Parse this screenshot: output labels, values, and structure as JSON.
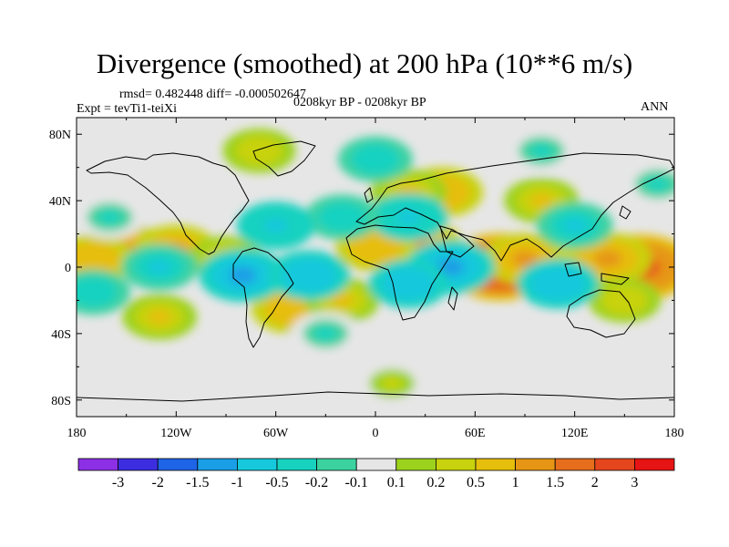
{
  "title": "Divergence (smoothed) at 200 hPa (10**6 m/s)",
  "stats": "rmsd= 0.482448 diff= -0.000502647",
  "experiment": "Expt = tevTi1-teiXi",
  "period": "0208kyr BP - 0208kyr BP",
  "season": "ANN",
  "colors": {
    "land": "#e6e6e6",
    "palette": [
      "#8c30e6",
      "#3c2ee0",
      "#1e64e6",
      "#1a9ee6",
      "#16c8dc",
      "#18d2c0",
      "#3cd2a0",
      "#e6e6e6",
      "#9cd21e",
      "#c8d20e",
      "#e6be0c",
      "#e69614",
      "#e66e1c",
      "#e6461e",
      "#e61414"
    ]
  },
  "chart_data": {
    "type": "heatmap",
    "projection": "cylindrical-equidistant",
    "xlim": [
      -180,
      180
    ],
    "ylim": [
      -90,
      90
    ],
    "x_ticks": [
      -180,
      -120,
      -60,
      0,
      60,
      120,
      180
    ],
    "x_tick_labels": [
      "180",
      "120W",
      "60W",
      "0",
      "60E",
      "120E",
      "180"
    ],
    "y_ticks": [
      80,
      40,
      0,
      -40,
      -80
    ],
    "y_tick_labels": [
      "80N",
      "40N",
      "0",
      "40S",
      "80S"
    ],
    "colorbar_levels": [
      -3,
      -2,
      -1.5,
      -1,
      -0.5,
      -0.2,
      -0.1,
      0.1,
      0.2,
      0.5,
      1,
      1.5,
      2,
      3
    ],
    "colorbar_labels": [
      "-3",
      "-2",
      "-1.5",
      "-1",
      "-0.5",
      "-0.2",
      "-0.1",
      "0.1",
      "0.2",
      "0.5",
      "1",
      "1.5",
      "2",
      "3"
    ],
    "field_centers": [
      {
        "lon": -150,
        "lat": 10,
        "value": 1.2
      },
      {
        "lon": -120,
        "lat": 10,
        "value": 1.0
      },
      {
        "lon": -170,
        "lat": 5,
        "value": 0.8
      },
      {
        "lon": -90,
        "lat": 5,
        "value": 0.5
      },
      {
        "lon": 25,
        "lat": 13,
        "value": 1.4
      },
      {
        "lon": 0,
        "lat": 12,
        "value": 0.8
      },
      {
        "lon": 75,
        "lat": 0,
        "value": 2.5
      },
      {
        "lon": 90,
        "lat": 5,
        "value": 1.0
      },
      {
        "lon": 160,
        "lat": 0,
        "value": 2.3
      },
      {
        "lon": 140,
        "lat": 5,
        "value": 1.2
      },
      {
        "lon": 40,
        "lat": 45,
        "value": 0.9
      },
      {
        "lon": 20,
        "lat": 45,
        "value": 0.6
      },
      {
        "lon": 100,
        "lat": 40,
        "value": 0.5
      },
      {
        "lon": -50,
        "lat": -25,
        "value": 0.9
      },
      {
        "lon": -20,
        "lat": -20,
        "value": 0.5
      },
      {
        "lon": 150,
        "lat": -20,
        "value": 0.4
      },
      {
        "lon": -130,
        "lat": -30,
        "value": 0.5
      },
      {
        "lon": 10,
        "lat": -70,
        "value": 0.3
      },
      {
        "lon": -70,
        "lat": 70,
        "value": 0.4
      },
      {
        "lon": -130,
        "lat": 0,
        "value": -0.6
      },
      {
        "lon": -80,
        "lat": -5,
        "value": -1.2
      },
      {
        "lon": -40,
        "lat": -5,
        "value": -0.9
      },
      {
        "lon": 45,
        "lat": 0,
        "value": -1.3
      },
      {
        "lon": 20,
        "lat": -10,
        "value": -0.8
      },
      {
        "lon": 110,
        "lat": -10,
        "value": -0.9
      },
      {
        "lon": 120,
        "lat": 25,
        "value": -0.6
      },
      {
        "lon": 20,
        "lat": 30,
        "value": -0.7
      },
      {
        "lon": -20,
        "lat": 30,
        "value": -0.5
      },
      {
        "lon": -60,
        "lat": 25,
        "value": -0.7
      },
      {
        "lon": -160,
        "lat": 30,
        "value": -0.3
      },
      {
        "lon": -170,
        "lat": -15,
        "value": -0.5
      },
      {
        "lon": 0,
        "lat": 65,
        "value": -0.5
      },
      {
        "lon": 100,
        "lat": 70,
        "value": -0.3
      },
      {
        "lon": 170,
        "lat": 50,
        "value": -0.3
      },
      {
        "lon": -30,
        "lat": -40,
        "value": -0.3
      }
    ]
  }
}
